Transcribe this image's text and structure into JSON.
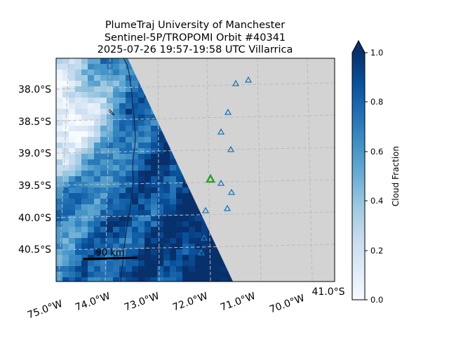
{
  "title": {
    "line1": "PlumeTraj    University of Manchester",
    "line2": "Sentinel-5P/TROPOMI Orbit #40341",
    "line3": "2025-07-26   19:57-19:58 UTC   Villarrica"
  },
  "map": {
    "lat_labels": [
      "38.0°S",
      "38.5°S",
      "39.0°S",
      "39.5°S",
      "40.0°S",
      "40.5°S"
    ],
    "lon_labels": [
      "75.0°W",
      "74.0°W",
      "73.0°W",
      "72.0°W",
      "71.0°W",
      "70.0°W"
    ],
    "extra_lat_label": "41.0°S",
    "scale_bar_label": "90 km",
    "background_color": "#d3d3d3",
    "coastline_color": "#1a1a2e"
  },
  "markers": {
    "volcano_color": "#2ca02c",
    "other_volcano_color": "#1f77b4",
    "volcano_label": "Villarrica"
  },
  "colorbar": {
    "label": "Cloud Fraction",
    "ticks": [
      "0.0",
      "0.2",
      "0.4",
      "0.6",
      "0.8",
      "1.0"
    ],
    "colormap": "Blues",
    "extend": "max"
  },
  "chart_data": {
    "type": "heatmap",
    "variable": "Cloud Fraction",
    "range": [
      0.0,
      1.0
    ],
    "lat_ticks": [
      -38.0,
      -38.5,
      -39.0,
      -39.5,
      -40.0,
      -40.5
    ],
    "lon_ticks": [
      -75.0,
      -74.0,
      -73.0,
      -72.0,
      -71.0,
      -70.0
    ],
    "summary": "Swath edge runs diagonally; west half (over Pacific and coast) mostly high cloud fraction (0.6-1.0), with low values (0.1-0.3) in the northwest corner; east half outside swath (no data)."
  }
}
